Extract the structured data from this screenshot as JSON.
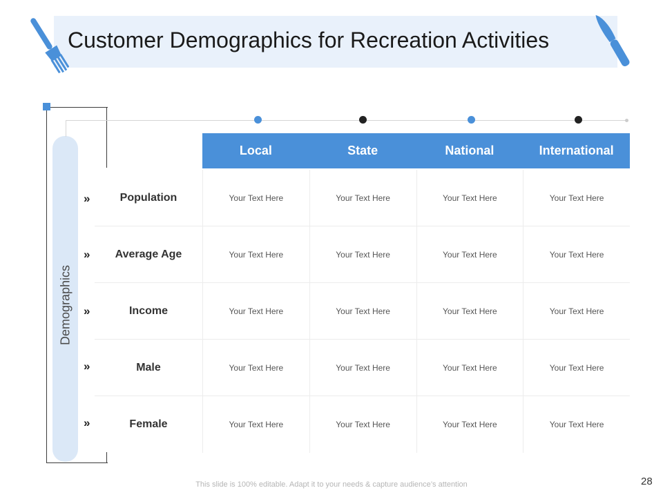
{
  "slide": {
    "title": "Customer Demographics for Recreation Activities",
    "side_label": "Demographics",
    "footer": "This slide is 100% editable. Adapt it to your needs & capture audience’s attention",
    "page_number": "28"
  },
  "colors": {
    "accent": "#4a90d9",
    "banner": "#e9f1fb",
    "pill": "#dbe8f7",
    "dark_dot": "#222222"
  },
  "icons": {
    "left": "fork-icon",
    "right": "knife-icon",
    "row_marker": "double-chevron-right-icon"
  },
  "table": {
    "columns": [
      "Local",
      "State",
      "National",
      "International"
    ],
    "rows": [
      {
        "label": "Population",
        "marker": "»",
        "cells": [
          "Your Text Here",
          "Your Text Here",
          "Your Text Here",
          "Your Text Here"
        ]
      },
      {
        "label": "Average Age",
        "marker": "»",
        "cells": [
          "Your Text Here",
          "Your Text Here",
          "Your Text Here",
          "Your Text Here"
        ]
      },
      {
        "label": "Income",
        "marker": "»",
        "cells": [
          "Your Text Here",
          "Your Text Here",
          "Your Text Here",
          "Your Text Here"
        ]
      },
      {
        "label": "Male",
        "marker": "»",
        "cells": [
          "Your Text Here",
          "Your Text Here",
          "Your Text Here",
          "Your Text Here"
        ]
      },
      {
        "label": "Female",
        "marker": "»",
        "cells": [
          "Your Text Here",
          "Your Text Here",
          "Your Text Here",
          "Your Text Here"
        ]
      }
    ]
  }
}
